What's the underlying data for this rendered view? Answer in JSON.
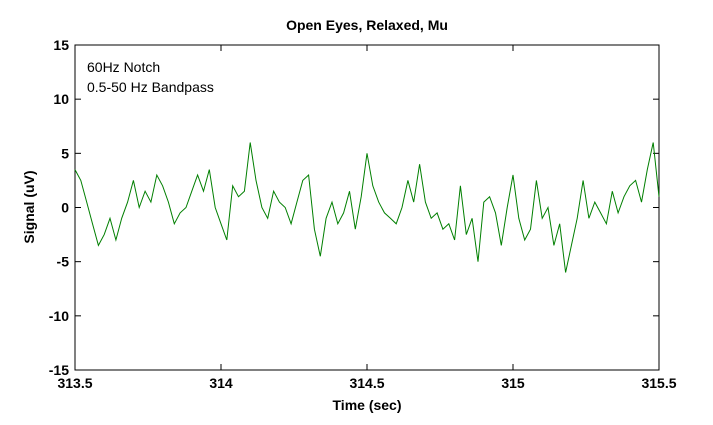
{
  "chart_data": {
    "type": "line",
    "title": "Open Eyes, Relaxed, Mu",
    "xlabel": "Time (sec)",
    "ylabel": "Signal (uV)",
    "xlim": [
      313.5,
      315.5
    ],
    "ylim": [
      -15,
      15
    ],
    "xticks": [
      313.5,
      314,
      314.5,
      315,
      315.5
    ],
    "xtick_labels": [
      "313.5",
      "314",
      "314.5",
      "315",
      "315.5"
    ],
    "yticks": [
      -15,
      -10,
      -5,
      0,
      5,
      10,
      15
    ],
    "ytick_labels": [
      "-15",
      "-10",
      "-5",
      "0",
      "5",
      "10",
      "15"
    ],
    "annotations": [
      "60Hz Notch",
      "0.5-50 Hz Bandpass"
    ],
    "grid": false,
    "series": [
      {
        "color": "#007f00",
        "x": [
          313.5,
          313.52,
          313.54,
          313.56,
          313.58,
          313.6,
          313.62,
          313.64,
          313.66,
          313.68,
          313.7,
          313.72,
          313.74,
          313.76,
          313.78,
          313.8,
          313.82,
          313.84,
          313.86,
          313.88,
          313.9,
          313.92,
          313.94,
          313.96,
          313.98,
          314.0,
          314.02,
          314.04,
          314.06,
          314.08,
          314.1,
          314.12,
          314.14,
          314.16,
          314.18,
          314.2,
          314.22,
          314.24,
          314.26,
          314.28,
          314.3,
          314.32,
          314.34,
          314.36,
          314.38,
          314.4,
          314.42,
          314.44,
          314.46,
          314.48,
          314.5,
          314.52,
          314.54,
          314.56,
          314.58,
          314.6,
          314.62,
          314.64,
          314.66,
          314.68,
          314.7,
          314.72,
          314.74,
          314.76,
          314.78,
          314.8,
          314.82,
          314.84,
          314.86,
          314.88,
          314.9,
          314.92,
          314.94,
          314.96,
          314.98,
          315.0,
          315.02,
          315.04,
          315.06,
          315.08,
          315.1,
          315.12,
          315.14,
          315.16,
          315.18,
          315.2,
          315.22,
          315.24,
          315.26,
          315.28,
          315.3,
          315.32,
          315.34,
          315.36,
          315.38,
          315.4,
          315.42,
          315.44,
          315.46,
          315.48,
          315.5
        ],
        "y": [
          3.5,
          2.5,
          0.5,
          -1.5,
          -3.5,
          -2.5,
          -1.0,
          -3.0,
          -1.0,
          0.5,
          2.5,
          0.0,
          1.5,
          0.5,
          3.0,
          2.0,
          0.5,
          -1.5,
          -0.5,
          0.0,
          1.5,
          3.0,
          1.5,
          3.5,
          0.0,
          -1.5,
          -3.0,
          2.0,
          1.0,
          1.5,
          6.0,
          2.5,
          0.0,
          -1.0,
          1.5,
          0.5,
          0.0,
          -1.5,
          0.5,
          2.5,
          3.0,
          -2.0,
          -4.5,
          -1.0,
          0.5,
          -1.5,
          -0.5,
          1.5,
          -2.0,
          1.0,
          5.0,
          2.0,
          0.5,
          -0.5,
          -1.0,
          -1.5,
          0.0,
          2.5,
          0.5,
          4.0,
          0.5,
          -1.0,
          -0.5,
          -2.0,
          -1.5,
          -3.0,
          2.0,
          -2.5,
          -1.0,
          -5.0,
          0.5,
          1.0,
          -0.5,
          -3.5,
          0.0,
          3.0,
          -1.0,
          -3.0,
          -2.0,
          2.5,
          -1.0,
          0.0,
          -3.5,
          -1.5,
          -6.0,
          -3.5,
          -1.0,
          2.5,
          -1.0,
          0.5,
          -0.5,
          -1.5,
          1.5,
          -0.5,
          1.0,
          2.0,
          2.5,
          0.5,
          3.5,
          6.0,
          1.0
        ]
      }
    ]
  }
}
